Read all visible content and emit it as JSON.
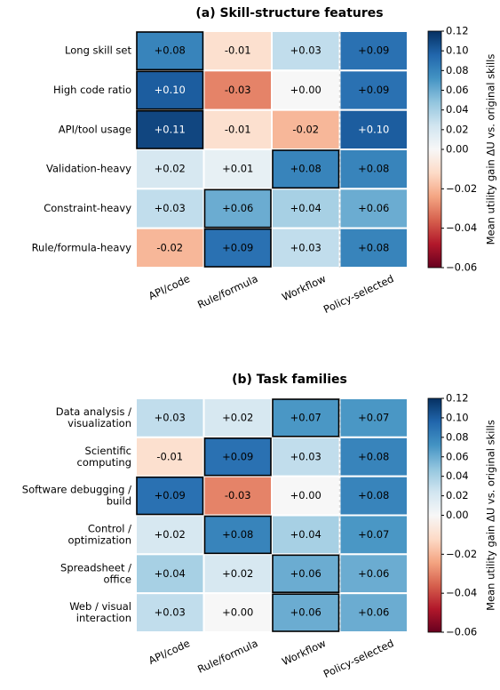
{
  "chart_data": [
    {
      "type": "heatmap",
      "title": "(a) Skill-structure features",
      "rows": [
        "Long skill set",
        "High code ratio",
        "API/tool usage",
        "Validation-heavy",
        "Constraint-heavy",
        "Rule/formula-heavy"
      ],
      "columns": [
        "API/code",
        "Rule/formula",
        "Workflow",
        "Policy-selected"
      ],
      "values": [
        [
          0.08,
          -0.01,
          0.03,
          0.09
        ],
        [
          0.1,
          -0.03,
          0.0,
          0.09
        ],
        [
          0.11,
          -0.01,
          -0.02,
          0.1
        ],
        [
          0.02,
          0.01,
          0.08,
          0.08
        ],
        [
          0.03,
          0.06,
          0.04,
          0.06
        ],
        [
          -0.02,
          0.09,
          0.03,
          0.08
        ]
      ],
      "value_labels": [
        [
          "+0.08",
          "-0.01",
          "+0.03",
          "+0.09"
        ],
        [
          "+0.10",
          "-0.03",
          "+0.00",
          "+0.09"
        ],
        [
          "+0.11",
          "-0.01",
          "-0.02",
          "+0.10"
        ],
        [
          "+0.02",
          "+0.01",
          "+0.08",
          "+0.08"
        ],
        [
          "+0.03",
          "+0.06",
          "+0.04",
          "+0.06"
        ],
        [
          "-0.02",
          "+0.09",
          "+0.03",
          "+0.08"
        ]
      ],
      "outlined": [
        [
          0,
          0
        ],
        [
          1,
          0
        ],
        [
          2,
          0
        ],
        [
          3,
          2
        ],
        [
          4,
          1
        ],
        [
          5,
          1
        ]
      ],
      "colormap": "RdBu",
      "clim": [
        -0.06,
        0.12
      ],
      "vcenter": 0,
      "colorbar_label": "Mean utility gain ΔU vs. original skills",
      "cticks": [
        {
          "value": 0.12,
          "label": "0.12"
        },
        {
          "value": 0.1,
          "label": "0.10"
        },
        {
          "value": 0.08,
          "label": "0.08"
        },
        {
          "value": 0.06,
          "label": "0.06"
        },
        {
          "value": 0.04,
          "label": "0.04"
        },
        {
          "value": 0.02,
          "label": "0.02"
        },
        {
          "value": 0,
          "label": "0.00"
        },
        {
          "value": -0.02,
          "label": "−0.02"
        },
        {
          "value": -0.04,
          "label": "−0.04"
        },
        {
          "value": -0.06,
          "label": "−0.06"
        }
      ]
    },
    {
      "type": "heatmap",
      "title": "(b) Task families",
      "rows": [
        [
          "Data analysis /",
          "visualization"
        ],
        [
          "Scientific",
          "computing"
        ],
        [
          "Software debugging /",
          "build"
        ],
        [
          "Control /",
          "optimization"
        ],
        [
          "Spreadsheet /",
          "office"
        ],
        [
          "Web / visual",
          "interaction"
        ]
      ],
      "columns": [
        "API/code",
        "Rule/formula",
        "Workflow",
        "Policy-selected"
      ],
      "values": [
        [
          0.03,
          0.02,
          0.07,
          0.07
        ],
        [
          -0.01,
          0.09,
          0.03,
          0.08
        ],
        [
          0.09,
          -0.03,
          0.0,
          0.08
        ],
        [
          0.02,
          0.08,
          0.04,
          0.07
        ],
        [
          0.04,
          0.02,
          0.06,
          0.06
        ],
        [
          0.03,
          0.0,
          0.06,
          0.06
        ]
      ],
      "value_labels": [
        [
          "+0.03",
          "+0.02",
          "+0.07",
          "+0.07"
        ],
        [
          "-0.01",
          "+0.09",
          "+0.03",
          "+0.08"
        ],
        [
          "+0.09",
          "-0.03",
          "+0.00",
          "+0.08"
        ],
        [
          "+0.02",
          "+0.08",
          "+0.04",
          "+0.07"
        ],
        [
          "+0.04",
          "+0.02",
          "+0.06",
          "+0.06"
        ],
        [
          "+0.03",
          "+0.00",
          "+0.06",
          "+0.06"
        ]
      ],
      "outlined": [
        [
          0,
          2
        ],
        [
          1,
          1
        ],
        [
          2,
          0
        ],
        [
          3,
          1
        ],
        [
          4,
          2
        ],
        [
          5,
          2
        ]
      ],
      "colormap": "RdBu",
      "clim": [
        -0.06,
        0.12
      ],
      "vcenter": 0,
      "colorbar_label": "Mean utility gain ΔU vs. original skills",
      "cticks": [
        {
          "value": 0.12,
          "label": "0.12"
        },
        {
          "value": 0.1,
          "label": "0.10"
        },
        {
          "value": 0.08,
          "label": "0.08"
        },
        {
          "value": 0.06,
          "label": "0.06"
        },
        {
          "value": 0.04,
          "label": "0.04"
        },
        {
          "value": 0.02,
          "label": "0.02"
        },
        {
          "value": 0,
          "label": "0.00"
        },
        {
          "value": -0.02,
          "label": "−0.02"
        },
        {
          "value": -0.04,
          "label": "−0.04"
        },
        {
          "value": -0.06,
          "label": "−0.06"
        }
      ]
    }
  ]
}
